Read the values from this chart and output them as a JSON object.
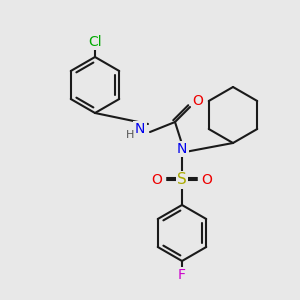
{
  "background_color": "#e8e8e8",
  "bond_color": "#1a1a1a",
  "bond_width": 1.5,
  "atom_label_colors": {
    "N": "#0000ee",
    "O": "#ee0000",
    "Cl": "#00aa00",
    "F": "#cc00cc",
    "S": "#aaaa00",
    "H": "#555555"
  },
  "font_size": 9,
  "fig_size": [
    3.0,
    3.0
  ],
  "dpi": 100
}
